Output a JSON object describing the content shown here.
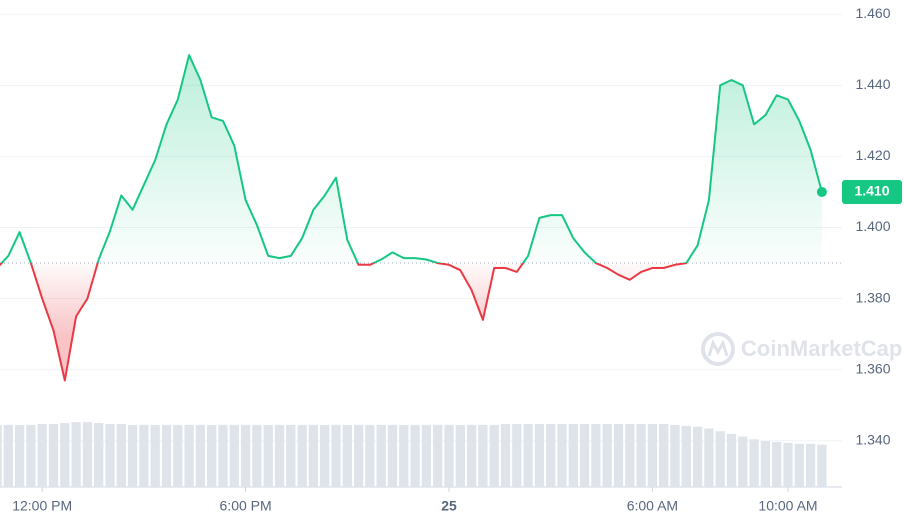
{
  "chart_data": {
    "type": "line",
    "categories": [
      null,
      null,
      null,
      null,
      "12:00 PM",
      null,
      null,
      null,
      null,
      null,
      null,
      null,
      null,
      null,
      null,
      null,
      null,
      null,
      null,
      null,
      null,
      null,
      "6:00 PM",
      null,
      null,
      null,
      null,
      null,
      null,
      null,
      null,
      null,
      null,
      null,
      null,
      null,
      null,
      null,
      null,
      null,
      "25",
      null,
      null,
      null,
      null,
      null,
      null,
      null,
      null,
      null,
      null,
      null,
      null,
      null,
      null,
      null,
      null,
      null,
      "6:00 AM",
      null,
      null,
      null,
      null,
      null,
      null,
      null,
      null,
      null,
      null,
      null,
      "10:00 AM",
      null,
      null,
      null
    ],
    "values": [
      1.3886,
      1.392,
      1.3987,
      1.39,
      1.38,
      1.371,
      1.357,
      1.375,
      1.38,
      1.391,
      1.399,
      1.409,
      1.405,
      1.412,
      1.419,
      1.429,
      1.436,
      1.4485,
      1.4415,
      1.431,
      1.43,
      1.423,
      1.4077,
      1.4007,
      1.392,
      1.3914,
      1.392,
      1.397,
      1.405,
      1.409,
      1.414,
      1.3965,
      1.3895,
      1.3895,
      1.391,
      1.393,
      1.3914,
      1.3914,
      1.391,
      1.39,
      1.3895,
      1.388,
      1.3824,
      1.374,
      1.3886,
      1.3886,
      1.3875,
      1.392,
      1.4027,
      1.4035,
      1.4035,
      1.397,
      1.393,
      1.39,
      1.3886,
      1.3867,
      1.3853,
      1.3875,
      1.3886,
      1.3886,
      1.3895,
      1.39,
      1.395,
      1.4077,
      1.44,
      1.4415,
      1.44,
      1.429,
      1.4316,
      1.4372,
      1.436,
      1.43,
      1.4218,
      1.41
    ],
    "volume": [
      69,
      69,
      69,
      69,
      70,
      70,
      71,
      72,
      72,
      71,
      70,
      70,
      69,
      69,
      69,
      69,
      69,
      69,
      69,
      69,
      69,
      69,
      69,
      69,
      69,
      69,
      69,
      69,
      69,
      69,
      69,
      69,
      69,
      69,
      69,
      69,
      69,
      69,
      69,
      69,
      69,
      69,
      69,
      69,
      69,
      70,
      70,
      70,
      70,
      70,
      70,
      70,
      70,
      70,
      70,
      70,
      70,
      70,
      70,
      70,
      69,
      68,
      67,
      65,
      62,
      59,
      56,
      53,
      51,
      50,
      49,
      48,
      48,
      47
    ],
    "up_color": "#16c784",
    "down_color": "#ea3943",
    "baseline": 1.39,
    "price_label": {
      "value": 1.41,
      "label": "1.410"
    },
    "ylim": [
      1.327,
      1.464
    ],
    "yticks": [
      {
        "value": 1.34,
        "label": "1.340"
      },
      {
        "value": 1.36,
        "label": "1.360"
      },
      {
        "value": 1.38,
        "label": "1.380"
      },
      {
        "value": 1.4,
        "label": "1.400"
      },
      {
        "value": 1.42,
        "label": "1.420"
      },
      {
        "value": 1.44,
        "label": "1.440"
      },
      {
        "value": 1.46,
        "label": "1.460"
      }
    ],
    "grid": true,
    "watermark": "CoinMarketCap"
  }
}
